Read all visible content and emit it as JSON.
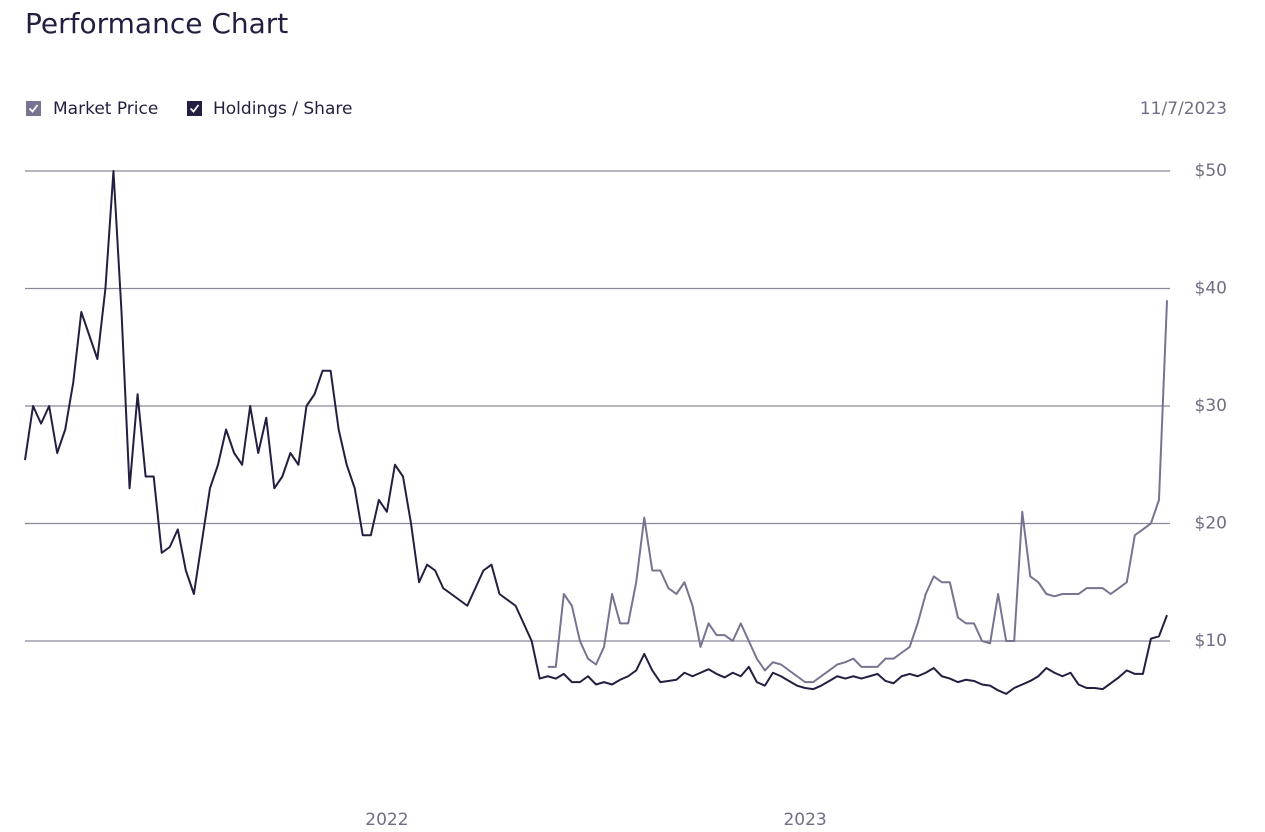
{
  "chart_data": {
    "type": "line",
    "title": "Performance Chart",
    "date": "11/7/2023",
    "categories": [
      null,
      null,
      null,
      null,
      null,
      null,
      null,
      null,
      null,
      null,
      null,
      null,
      null,
      null,
      null,
      null,
      null,
      null,
      null,
      null,
      null,
      null,
      null,
      null,
      null,
      null,
      null,
      null,
      null,
      null,
      null,
      null,
      null,
      null,
      null,
      null,
      null,
      null,
      null,
      null,
      null,
      null,
      null,
      null,
      null,
      "2022",
      null,
      null,
      null,
      null,
      null,
      null,
      null,
      null,
      null,
      null,
      null,
      null,
      null,
      null,
      null,
      null,
      null,
      null,
      null,
      null,
      null,
      null,
      null,
      null,
      null,
      null,
      null,
      null,
      null,
      null,
      null,
      null,
      null,
      null,
      null,
      null,
      null,
      null,
      null,
      null,
      null,
      null,
      null,
      null,
      null,
      null,
      null,
      null,
      null,
      null,
      null,
      "2023",
      null,
      null,
      null,
      null,
      null,
      null,
      null,
      null,
      null,
      null,
      null,
      null,
      null,
      null,
      null,
      null,
      null,
      null,
      null,
      null,
      null,
      null,
      null,
      null,
      null,
      null,
      null,
      null,
      null,
      null,
      null,
      null,
      null,
      null,
      null,
      null,
      null,
      null,
      null,
      null,
      null,
      null,
      null,
      null,
      null
    ],
    "series": [
      {
        "name": "Market Price",
        "color": "#787390",
        "values": [
          null,
          null,
          null,
          null,
          null,
          null,
          null,
          null,
          null,
          null,
          null,
          null,
          null,
          null,
          null,
          null,
          null,
          null,
          null,
          null,
          null,
          null,
          null,
          null,
          null,
          null,
          null,
          null,
          null,
          null,
          null,
          null,
          null,
          null,
          null,
          null,
          null,
          null,
          null,
          null,
          null,
          null,
          null,
          null,
          null,
          null,
          null,
          null,
          null,
          null,
          null,
          null,
          null,
          null,
          null,
          null,
          null,
          null,
          null,
          null,
          null,
          null,
          null,
          null,
          null,
          7.8,
          7.8,
          14,
          13,
          10,
          8.5,
          8,
          9.5,
          14,
          11.5,
          11.5,
          15,
          20.5,
          16,
          16,
          14.5,
          14,
          15,
          13,
          9.5,
          11.5,
          10.5,
          10.5,
          10,
          11.5,
          10,
          8.5,
          7.5,
          8.2,
          8,
          7.5,
          7,
          6.5,
          6.5,
          7,
          7.5,
          8,
          8.2,
          8.5,
          7.8,
          7.8,
          7.8,
          8.5,
          8.5,
          9,
          9.5,
          11.5,
          14,
          15.5,
          15,
          15,
          12,
          11.5,
          11.5,
          10,
          9.8,
          14,
          10,
          10,
          21,
          15.5,
          15,
          14,
          13.8,
          14,
          14,
          14,
          14.5,
          14.5,
          14.5,
          14,
          14.5,
          15,
          19,
          19.5,
          20,
          22,
          39
        ]
      },
      {
        "name": "Holdings / Share",
        "color": "#231f40",
        "values": [
          25.4,
          30,
          28.5,
          30,
          26,
          28,
          32,
          38,
          36,
          34,
          40,
          50,
          38,
          23,
          31,
          24,
          24,
          17.5,
          18,
          19.5,
          16,
          14,
          18.5,
          23,
          25,
          28,
          26,
          25,
          30,
          26,
          29,
          23,
          24,
          26,
          25,
          30,
          31,
          33,
          33,
          28,
          25,
          23,
          19,
          19,
          22,
          21,
          25,
          24,
          20,
          15,
          16.5,
          16,
          14.5,
          14,
          13.5,
          13,
          14.5,
          16,
          16.5,
          14,
          13.5,
          13,
          11.5,
          10,
          6.8,
          7,
          6.8,
          7.2,
          6.5,
          6.5,
          7,
          6.3,
          6.5,
          6.3,
          6.7,
          7,
          7.5,
          8.9,
          7.5,
          6.5,
          6.6,
          6.7,
          7.3,
          7,
          7.3,
          7.6,
          7.2,
          6.9,
          7.3,
          7,
          7.8,
          6.5,
          6.2,
          7.3,
          7,
          6.6,
          6.2,
          6,
          5.9,
          6.2,
          6.6,
          7,
          6.8,
          7,
          6.8,
          7,
          7.2,
          6.6,
          6.4,
          7,
          7.2,
          7,
          7.3,
          7.7,
          7,
          6.8,
          6.5,
          6.7,
          6.6,
          6.3,
          6.2,
          5.8,
          5.5,
          6,
          6.3,
          6.6,
          7,
          7.7,
          7.3,
          7,
          7.3,
          6.3,
          6,
          6,
          5.9,
          6.4,
          6.9,
          7.5,
          7.2,
          7.2,
          10.2,
          10.4,
          12.2
        ]
      }
    ],
    "ylim": [
      0,
      50
    ],
    "yticks": [
      {
        "value": 10,
        "label": "$10"
      },
      {
        "value": 20,
        "label": "$20"
      },
      {
        "value": 30,
        "label": "$30"
      },
      {
        "value": 40,
        "label": "$40"
      },
      {
        "value": 50,
        "label": "$50"
      }
    ],
    "grid": true
  }
}
